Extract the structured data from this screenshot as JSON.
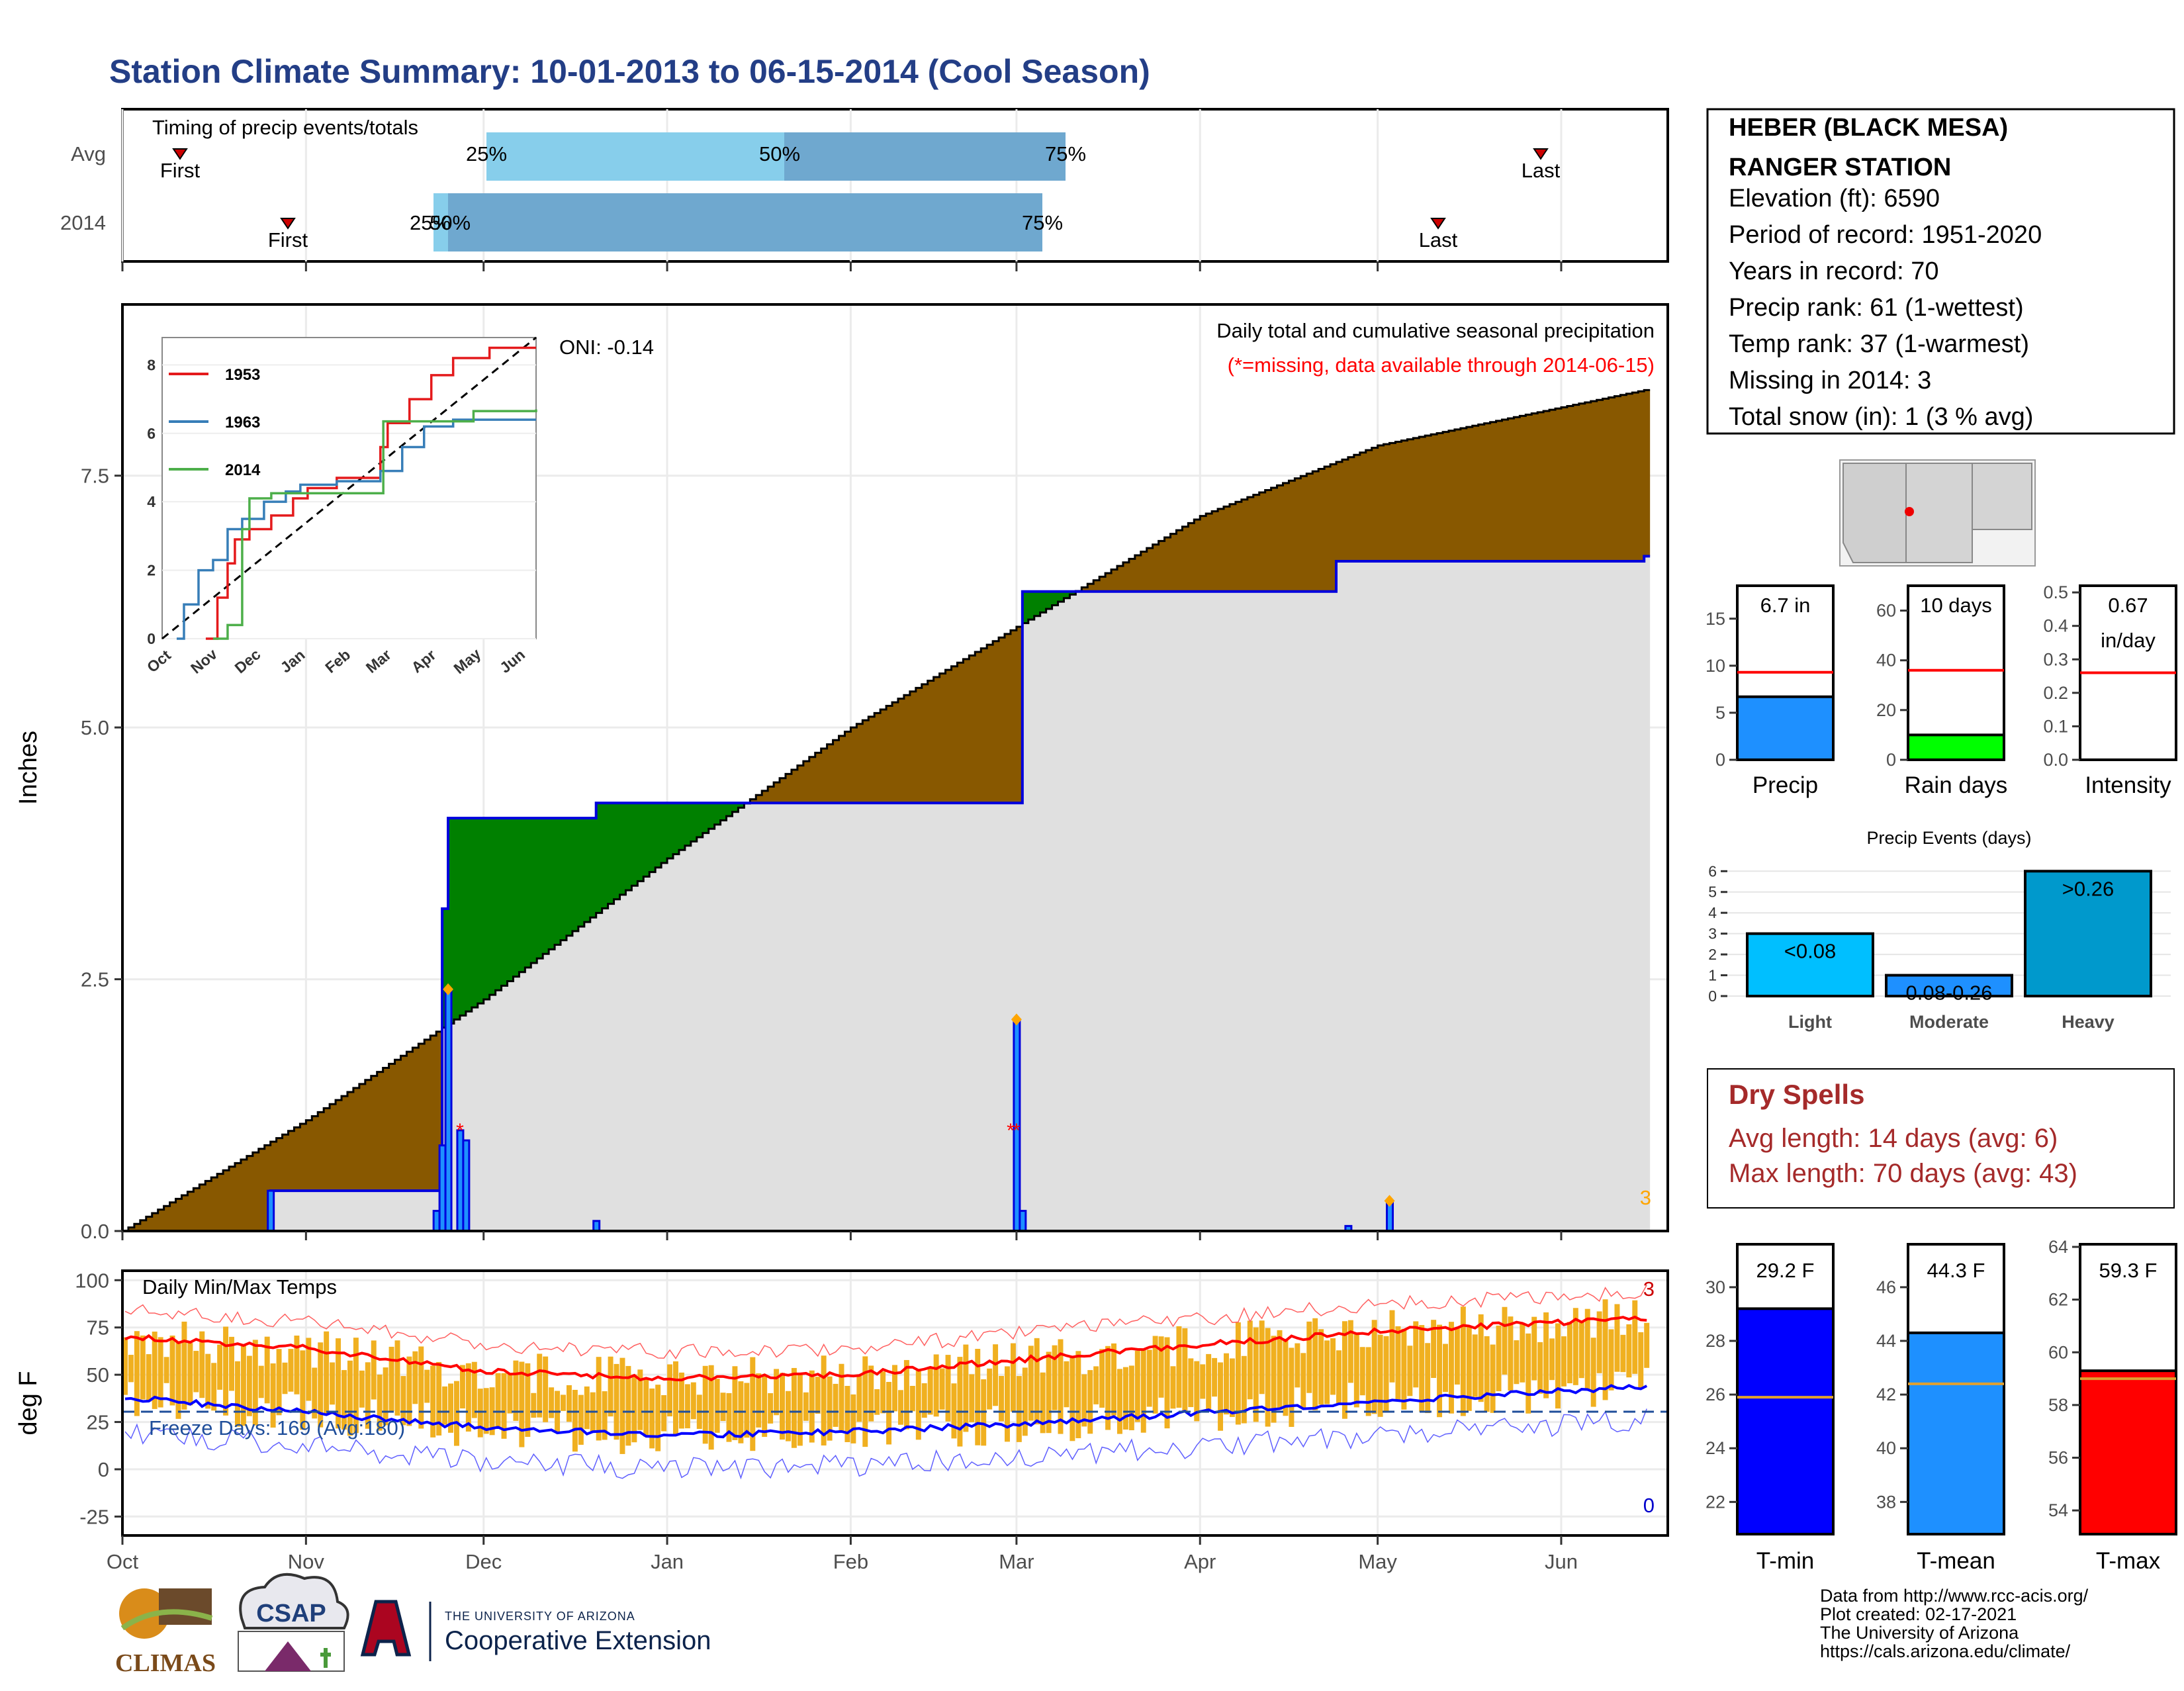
{
  "title": "Station Climate Summary: 10-01-2013 to 06-15-2014 (Cool Season)",
  "station": {
    "name_line1": "HEBER (BLACK MESA)",
    "name_line2": "RANGER STATION",
    "elevation": "Elevation (ft): 6590",
    "period": "Period of record: 1951-2020",
    "years": "Years in record: 70",
    "precip_rank": "Precip rank: 61 (1-wettest)",
    "temp_rank": "Temp rank: 37 (1-warmest)",
    "missing": "Missing in 2014: 3",
    "snow": "Total snow (in): 1 (3 % avg)"
  },
  "timing": {
    "title": "Timing of precip events/totals",
    "rows": [
      "Avg",
      "2014"
    ],
    "first": "First",
    "last": "Last",
    "p25": "25%",
    "p50": "50%",
    "p75": "75%",
    "colors": {
      "light": "#87ceeb",
      "dark": "#6fa8cf"
    }
  },
  "precip_panel": {
    "ylabel": "Inches",
    "yticks": [
      "0.0",
      "2.5",
      "5.0",
      "7.5"
    ],
    "heading": "Daily total and cumulative seasonal precipitation",
    "missing_note": "(*=missing, data available through 2014-06-15)",
    "oni": "ONI: -0.14",
    "corner_count": "3",
    "colors": {
      "above": "#885800",
      "below": "#008000",
      "avg_fill": "#e0e0e0",
      "line": "#0000dd"
    }
  },
  "inset": {
    "legend": [
      "1953",
      "1963",
      "2014"
    ],
    "colors": [
      "#e41a1c",
      "#377eb8",
      "#4daf4a"
    ],
    "yticks": [
      "0",
      "2",
      "4",
      "6",
      "8"
    ],
    "months": [
      "Oct",
      "Nov",
      "Dec",
      "Jan",
      "Feb",
      "Mar",
      "Apr",
      "May",
      "Jun"
    ]
  },
  "temp_panel": {
    "ylabel": "deg F",
    "yticks": [
      "100",
      "75",
      "50",
      "25",
      "0",
      "-25"
    ],
    "label": "Daily Min/Max Temps",
    "freeze": "Freeze Days: 169 (Avg:180)",
    "top_count": "3",
    "bottom_count": "0",
    "colors": {
      "bars": "#f0b020",
      "max": "#ff0000",
      "min": "#0000ff"
    }
  },
  "months": [
    "Oct",
    "Nov",
    "Dec",
    "Jan",
    "Feb",
    "Mar",
    "Apr",
    "May",
    "Jun"
  ],
  "bars_top": {
    "precip": {
      "value": "6.7 in",
      "label": "Precip",
      "yticks": [
        "0",
        "5",
        "10",
        "15"
      ],
      "color": "#1e90ff"
    },
    "raindays": {
      "value": "10 days",
      "label": "Rain days",
      "yticks": [
        "0",
        "20",
        "40",
        "60"
      ],
      "color": "#00ff00"
    },
    "intensity": {
      "value_l1": "0.67",
      "value_l2": "in/day",
      "label": "Intensity",
      "yticks": [
        "0.0",
        "0.1",
        "0.2",
        "0.3",
        "0.4",
        "0.5"
      ]
    }
  },
  "events": {
    "title": "Precip Events (days)",
    "yticks": [
      "0",
      "1",
      "2",
      "3",
      "4",
      "5",
      "6"
    ],
    "categories": [
      "Light",
      "Moderate",
      "Heavy"
    ],
    "labels": [
      "<0.08",
      "0.08-0.26",
      ">0.26"
    ],
    "colors": [
      "#00bfff",
      "#1e90ff",
      "#0099cc"
    ]
  },
  "dry_spells": {
    "title": "Dry Spells",
    "avg": "Avg length: 14 days (avg: 6)",
    "max": "Max length: 70 days (avg: 43)"
  },
  "temp_bars": {
    "tmin": {
      "value": "29.2 F",
      "label": "T-min",
      "yticks": [
        "22",
        "24",
        "26",
        "28",
        "30"
      ],
      "color": "#0000ff"
    },
    "tmean": {
      "value": "44.3 F",
      "label": "T-mean",
      "yticks": [
        "38",
        "40",
        "42",
        "44",
        "46"
      ],
      "color": "#1e90ff"
    },
    "tmax": {
      "value": "59.3 F",
      "label": "T-max",
      "yticks": [
        "54",
        "56",
        "58",
        "60",
        "62",
        "64"
      ],
      "color": "#ff0000"
    }
  },
  "footer": {
    "line1": "Data from http://www.rcc-acis.org/",
    "line2": "Plot created: 02-17-2021",
    "line3": "The University of Arizona",
    "line4": "https://cals.arizona.edu/climate/",
    "climas": "CLIMAS",
    "csap": "CSAP",
    "ua_small": "THE UNIVERSITY OF ARIZONA",
    "ua_big": "Cooperative Extension"
  },
  "chart_data": [
    {
      "type": "area",
      "title": "Daily total and cumulative seasonal precipitation",
      "ylabel": "Inches",
      "ylim": [
        0,
        9
      ],
      "series": [
        {
          "name": "2014",
          "x": [
            "2013-10-01",
            "2013-10-26",
            "2013-11-23",
            "2013-11-24",
            "2013-11-25",
            "2013-12-20",
            "2014-01-17",
            "2014-03-01",
            "2014-03-02",
            "2014-04-23",
            "2014-04-24",
            "2014-06-15"
          ],
          "values": [
            0,
            0.4,
            0.4,
            3.2,
            4.1,
            4.25,
            4.25,
            4.25,
            6.35,
            6.35,
            6.65,
            6.7
          ]
        },
        {
          "name": "Avg",
          "x": [
            "2013-10-01",
            "2013-11-01",
            "2013-12-01",
            "2014-01-01",
            "2014-02-01",
            "2014-03-01",
            "2014-04-01",
            "2014-05-01",
            "2014-06-15"
          ],
          "values": [
            0,
            1.1,
            2.3,
            3.7,
            5.0,
            6.0,
            7.1,
            7.8,
            8.35
          ]
        }
      ]
    },
    {
      "type": "bar",
      "title": "Daily Min/Max Temps",
      "ylabel": "deg F",
      "ylim": [
        -35,
        100
      ],
      "series": [
        {
          "name": "max avg",
          "x": [
            "Oct",
            "Nov",
            "Dec",
            "Jan",
            "Feb",
            "Mar",
            "Apr",
            "May",
            "Jun"
          ],
          "values": [
            70,
            64,
            52,
            48,
            50,
            58,
            66,
            73,
            80
          ]
        },
        {
          "name": "min avg",
          "x": [
            "Oct",
            "Nov",
            "Dec",
            "Jan",
            "Feb",
            "Mar",
            "Apr",
            "May",
            "Jun"
          ],
          "values": [
            38,
            30,
            22,
            18,
            20,
            24,
            30,
            36,
            44
          ]
        }
      ]
    },
    {
      "type": "bar",
      "categories": [
        "Light",
        "Moderate",
        "Heavy"
      ],
      "values": [
        3,
        1,
        6
      ],
      "title": "Precip Events (days)"
    },
    {
      "type": "bar",
      "categories": [
        "T-min",
        "T-mean",
        "T-max"
      ],
      "values": [
        29.2,
        44.3,
        59.3
      ]
    }
  ]
}
